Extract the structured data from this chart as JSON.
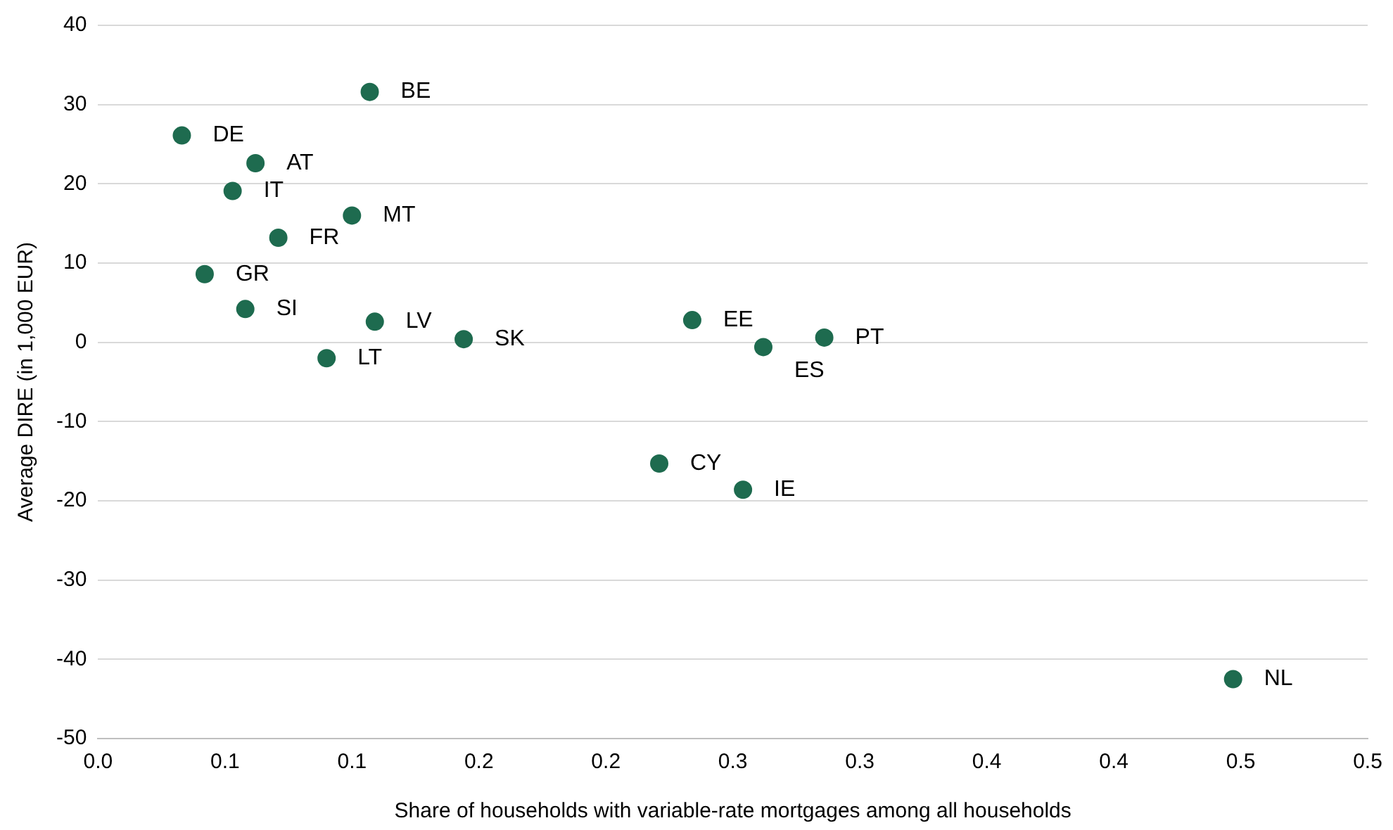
{
  "chart_data": {
    "type": "scatter",
    "xlabel": "Share of households with variable-rate mortgages among all households",
    "ylabel": "Average DIRE (in 1,000 EUR)",
    "x": [
      0.033,
      0.107,
      0.062,
      0.053,
      0.1,
      0.071,
      0.042,
      0.058,
      0.109,
      0.09,
      0.144,
      0.234,
      0.262,
      0.286,
      0.221,
      0.254,
      0.447
    ],
    "series": [
      {
        "color": "#1e6b4f",
        "values": [
          26.1,
          31.6,
          22.6,
          19.1,
          16.0,
          13.2,
          8.6,
          4.2,
          2.6,
          -2.0,
          0.4,
          2.8,
          -0.6,
          0.6,
          -15.3,
          -18.6,
          -42.5
        ]
      }
    ],
    "annotations": [
      {
        "text": "DE",
        "x": 0.033,
        "y": 26.1
      },
      {
        "text": "BE",
        "x": 0.107,
        "y": 31.6
      },
      {
        "text": "AT",
        "x": 0.062,
        "y": 22.6
      },
      {
        "text": "IT",
        "x": 0.053,
        "y": 19.1
      },
      {
        "text": "MT",
        "x": 0.1,
        "y": 16.0
      },
      {
        "text": "FR",
        "x": 0.071,
        "y": 13.2
      },
      {
        "text": "GR",
        "x": 0.042,
        "y": 8.6
      },
      {
        "text": "SI",
        "x": 0.058,
        "y": 4.2
      },
      {
        "text": "LV",
        "x": 0.109,
        "y": 2.6
      },
      {
        "text": "LT",
        "x": 0.09,
        "y": -2.0
      },
      {
        "text": "SK",
        "x": 0.144,
        "y": 0.4
      },
      {
        "text": "EE",
        "x": 0.234,
        "y": 2.8
      },
      {
        "text": "ES",
        "x": 0.262,
        "y": -0.6
      },
      {
        "text": "PT",
        "x": 0.286,
        "y": 0.6
      },
      {
        "text": "CY",
        "x": 0.221,
        "y": -15.3
      },
      {
        "text": "IE",
        "x": 0.254,
        "y": -18.6
      },
      {
        "text": "NL",
        "x": 0.447,
        "y": -42.5
      }
    ],
    "xlim": [
      0,
      0.5
    ],
    "xticks": [
      {
        "value": 0,
        "label": "0.0"
      },
      {
        "value": 0.05,
        "label": "0.1"
      },
      {
        "value": 0.1,
        "label": "0.1"
      },
      {
        "value": 0.15,
        "label": "0.2"
      },
      {
        "value": 0.2,
        "label": "0.2"
      },
      {
        "value": 0.25,
        "label": "0.3"
      },
      {
        "value": 0.3,
        "label": "0.3"
      },
      {
        "value": 0.35,
        "label": "0.4"
      },
      {
        "value": 0.4,
        "label": "0.4"
      },
      {
        "value": 0.45,
        "label": "0.5"
      },
      {
        "value": 0.5,
        "label": "0.5"
      }
    ],
    "ylim": [
      -50,
      40
    ],
    "yticks": [
      -50,
      -40,
      -30,
      -20,
      -10,
      0,
      10,
      20,
      30,
      40
    ],
    "grid": "y",
    "marker": "circle",
    "legend": false
  }
}
